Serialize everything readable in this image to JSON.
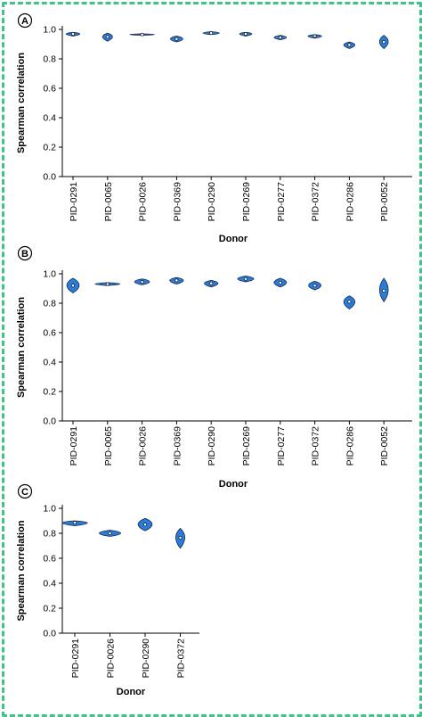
{
  "chart_data": [
    {
      "panel": "A",
      "type": "violin",
      "xlabel": "Donor",
      "ylabel": "Spearman correlation",
      "ylim": [
        0.0,
        1.0
      ],
      "yticks": [
        "0.0",
        "0.2",
        "0.4",
        "0.6",
        "0.8",
        "1.0"
      ],
      "categories": [
        "PID-0291",
        "PID-0065",
        "PID-0026",
        "PID-0369",
        "PID-0290",
        "PID-0269",
        "PID-0277",
        "PID-0372",
        "PID-0286",
        "PID-0052"
      ],
      "median": [
        0.97,
        0.95,
        0.965,
        0.935,
        0.975,
        0.97,
        0.945,
        0.955,
        0.895,
        0.915
      ],
      "min": [
        0.955,
        0.92,
        0.96,
        0.915,
        0.965,
        0.955,
        0.93,
        0.94,
        0.87,
        0.87
      ],
      "max": [
        0.98,
        0.975,
        0.97,
        0.955,
        0.985,
        0.98,
        0.96,
        0.965,
        0.915,
        0.96
      ],
      "width": [
        0.55,
        0.4,
        1.0,
        0.5,
        0.65,
        0.5,
        0.5,
        0.55,
        0.45,
        0.35
      ]
    },
    {
      "panel": "B",
      "type": "violin",
      "xlabel": "Donor",
      "ylabel": "Spearman correlation",
      "ylim": [
        0.0,
        1.0
      ],
      "yticks": [
        "0.0",
        "0.2",
        "0.4",
        "0.6",
        "0.8",
        "1.0"
      ],
      "categories": [
        "PID-0291",
        "PID-0065",
        "PID-0026",
        "PID-0369",
        "PID-0290",
        "PID-0269",
        "PID-0277",
        "PID-0372",
        "PID-0286",
        "PID-0052"
      ],
      "median": [
        0.92,
        0.93,
        0.945,
        0.955,
        0.935,
        0.965,
        0.94,
        0.92,
        0.81,
        0.885
      ],
      "min": [
        0.87,
        0.92,
        0.925,
        0.93,
        0.91,
        0.945,
        0.91,
        0.89,
        0.76,
        0.81
      ],
      "max": [
        0.97,
        0.94,
        0.965,
        0.975,
        0.955,
        0.985,
        0.97,
        0.95,
        0.85,
        0.97
      ],
      "width": [
        0.5,
        1.0,
        0.6,
        0.55,
        0.55,
        0.65,
        0.5,
        0.5,
        0.45,
        0.35
      ]
    },
    {
      "panel": "C",
      "type": "violin",
      "xlabel": "Donor",
      "ylabel": "Spearman correlation",
      "ylim": [
        0.0,
        1.0
      ],
      "yticks": [
        "0.0",
        "0.2",
        "0.4",
        "0.6",
        "0.8",
        "1.0"
      ],
      "categories": [
        "PID-0291",
        "PID-0026",
        "PID-0290",
        "PID-0372"
      ],
      "median": [
        0.885,
        0.8,
        0.87,
        0.765
      ],
      "min": [
        0.86,
        0.775,
        0.82,
        0.68
      ],
      "max": [
        0.9,
        0.825,
        0.92,
        0.84
      ],
      "width": [
        1.0,
        0.85,
        0.55,
        0.35
      ]
    }
  ]
}
